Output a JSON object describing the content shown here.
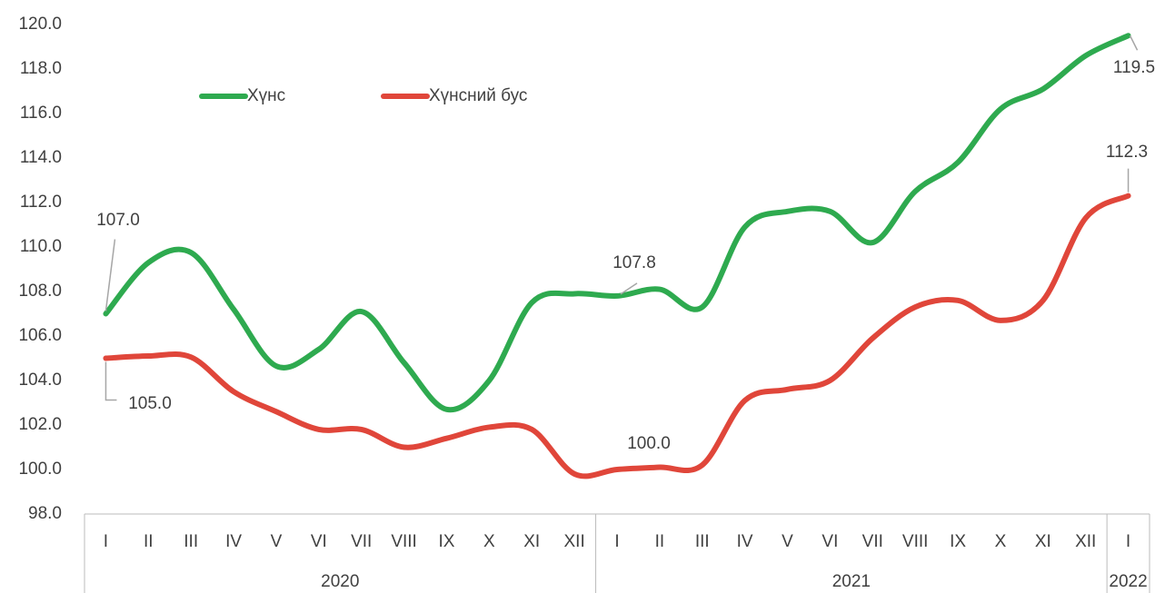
{
  "chart_data": {
    "type": "line",
    "groups": [
      {
        "name": "2020",
        "categories": [
          "I",
          "II",
          "III",
          "IV",
          "V",
          "VI",
          "VII",
          "VIII",
          "IX",
          "X",
          "XI",
          "XII"
        ]
      },
      {
        "name": "2021",
        "categories": [
          "I",
          "II",
          "III",
          "IV",
          "V",
          "VI",
          "VII",
          "VIII",
          "IX",
          "X",
          "XI",
          "XII"
        ]
      },
      {
        "name": "2022",
        "categories": [
          "I"
        ]
      }
    ],
    "series": [
      {
        "name": "Хүнс",
        "color": "#2eaa4f",
        "values": [
          107.0,
          109.3,
          109.75,
          107.2,
          104.65,
          105.4,
          107.1,
          104.8,
          102.7,
          104.0,
          107.5,
          107.9,
          107.8,
          108.1,
          107.3,
          110.9,
          111.6,
          111.6,
          110.2,
          112.5,
          113.8,
          116.2,
          117.1,
          118.6,
          119.5
        ],
        "value_labels": [
          "107.0",
          null,
          null,
          null,
          null,
          null,
          null,
          null,
          null,
          null,
          null,
          null,
          "107.8",
          null,
          null,
          null,
          null,
          null,
          null,
          null,
          null,
          null,
          null,
          null,
          "119.5"
        ]
      },
      {
        "name": "Хүнсний бус",
        "color": "#e0463a",
        "values": [
          105.0,
          105.1,
          105.05,
          103.5,
          102.6,
          101.8,
          101.8,
          101.0,
          101.4,
          101.9,
          101.8,
          99.8,
          100.0,
          100.1,
          100.2,
          103.1,
          103.6,
          104.0,
          105.9,
          107.3,
          107.6,
          106.7,
          107.6,
          111.3,
          112.3
        ],
        "value_labels": [
          "105.0",
          null,
          null,
          null,
          null,
          null,
          null,
          null,
          null,
          null,
          null,
          null,
          "100.0",
          null,
          null,
          null,
          null,
          null,
          null,
          null,
          null,
          null,
          null,
          null,
          "112.3"
        ]
      }
    ],
    "ylim": [
      98,
      120
    ],
    "yticks": [
      {
        "value": 98,
        "label": "98.0"
      },
      {
        "value": 100,
        "label": "100.0"
      },
      {
        "value": 102,
        "label": "102.0"
      },
      {
        "value": 104,
        "label": "104.0"
      },
      {
        "value": 106,
        "label": "106.0"
      },
      {
        "value": 108,
        "label": "108.0"
      },
      {
        "value": 110,
        "label": "110.0"
      },
      {
        "value": 112,
        "label": "112.0"
      },
      {
        "value": 114,
        "label": "114.0"
      },
      {
        "value": 116,
        "label": "116.0"
      },
      {
        "value": 118,
        "label": "118.0"
      },
      {
        "value": 120,
        "label": "120.0"
      }
    ],
    "grid": false,
    "legend": "top-left"
  }
}
